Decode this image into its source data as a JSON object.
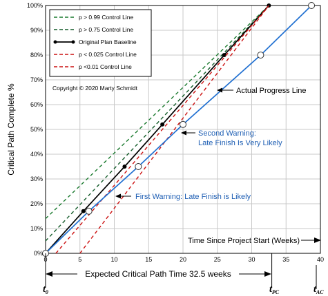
{
  "chart_data": {
    "type": "line",
    "title": "",
    "ylabel": "Critical Path Complete %",
    "xlabel": "Time Since Project Start (Weeks)",
    "xlim": [
      0,
      40
    ],
    "ylim": [
      0,
      100
    ],
    "x_ticks": [
      "0",
      "5",
      "10",
      "15",
      "20",
      "25",
      "30",
      "35",
      "40"
    ],
    "y_ticks": [
      "0%",
      "10%",
      "20%",
      "30%",
      "40%",
      "50%",
      "60%",
      "70%",
      "80%",
      "90%",
      "100%"
    ],
    "grid": true,
    "legend_position": "top-left",
    "series": [
      {
        "name": "p > 0.99 Control Line",
        "style": "dashed",
        "color": "#1a7a2e",
        "x": [
          0,
          32.5
        ],
        "y": [
          14,
          100
        ]
      },
      {
        "name": "p > 0.75 Control Line",
        "style": "dashed",
        "color": "#145c2a",
        "x": [
          0,
          32.5
        ],
        "y": [
          5,
          100
        ]
      },
      {
        "name": "Original Plan Baseline",
        "style": "solid-markers",
        "color": "#000000",
        "x": [
          0,
          5.5,
          11.5,
          17,
          26,
          32.5
        ],
        "y": [
          0,
          17,
          35,
          52,
          80,
          100
        ]
      },
      {
        "name": "p < 0.025 Control Line",
        "style": "dashed",
        "color": "#cc1111",
        "x": [
          1.5,
          32.5
        ],
        "y": [
          0,
          100
        ]
      },
      {
        "name": "p <0.01 Control Line",
        "style": "dashed",
        "color": "#cc1111",
        "x": [
          5,
          32.5
        ],
        "y": [
          0,
          100
        ]
      },
      {
        "name": "Actual Progress Line",
        "style": "solid-open-markers",
        "color": "#1f6fd1",
        "x": [
          0,
          6.3,
          13.5,
          20,
          31.3,
          38.7
        ],
        "y": [
          0,
          17,
          35,
          52,
          80,
          100
        ]
      }
    ],
    "annotations": {
      "copyright": "Copyright ©  2020 Marty Schmidt",
      "actual_progress": "Actual Progress Line",
      "second_warning_line1": "Second Warning:",
      "second_warning_line2": "Late Finish Is Very Likely",
      "first_warning": "First Warning: Late Finish is Likely",
      "expected_time": "Expected Critical Path Time 32.5 weeks",
      "t0_main": "t",
      "t0_sub": "0",
      "tpc_main": "t",
      "tpc_sub": "PC",
      "tac_main": "t",
      "tac_sub": "AC"
    },
    "colors": {
      "actual": "#1f6fd1",
      "baseline": "#000000",
      "control_high": "#1a7a2e",
      "control_low": "#cc1111",
      "annotation_blue": "#1f5fb4"
    }
  }
}
